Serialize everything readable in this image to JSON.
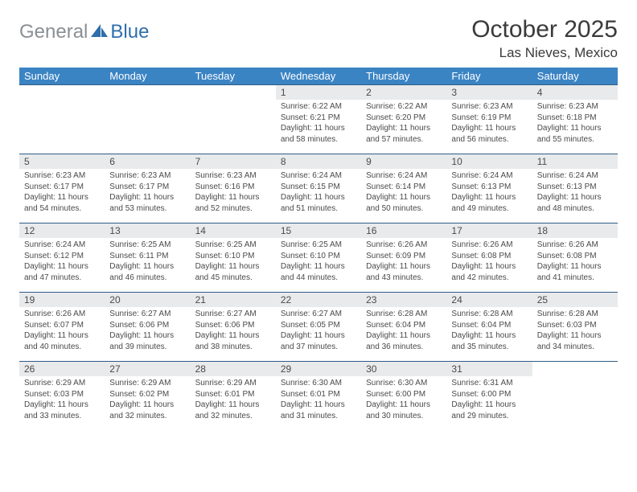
{
  "brand": {
    "gray": "General",
    "blue": "Blue"
  },
  "title": "October 2025",
  "location": "Las Nieves, Mexico",
  "colors": {
    "header_bg": "#3b84c4",
    "header_text": "#ffffff",
    "row_border": "#2f5d87",
    "daynum_bg": "#e9eaeb",
    "text": "#4a4a4a",
    "logo_gray": "#8a8f94",
    "logo_blue": "#2f6fab"
  },
  "typography": {
    "title_fontsize": 30,
    "location_fontsize": 17,
    "dayheader_fontsize": 13,
    "daynum_fontsize": 12,
    "body_fontsize": 10
  },
  "day_names": [
    "Sunday",
    "Monday",
    "Tuesday",
    "Wednesday",
    "Thursday",
    "Friday",
    "Saturday"
  ],
  "weeks": [
    [
      {
        "n": "",
        "sr": "",
        "ss": "",
        "dl": ""
      },
      {
        "n": "",
        "sr": "",
        "ss": "",
        "dl": ""
      },
      {
        "n": "",
        "sr": "",
        "ss": "",
        "dl": ""
      },
      {
        "n": "1",
        "sr": "Sunrise: 6:22 AM",
        "ss": "Sunset: 6:21 PM",
        "dl": "Daylight: 11 hours and 58 minutes."
      },
      {
        "n": "2",
        "sr": "Sunrise: 6:22 AM",
        "ss": "Sunset: 6:20 PM",
        "dl": "Daylight: 11 hours and 57 minutes."
      },
      {
        "n": "3",
        "sr": "Sunrise: 6:23 AM",
        "ss": "Sunset: 6:19 PM",
        "dl": "Daylight: 11 hours and 56 minutes."
      },
      {
        "n": "4",
        "sr": "Sunrise: 6:23 AM",
        "ss": "Sunset: 6:18 PM",
        "dl": "Daylight: 11 hours and 55 minutes."
      }
    ],
    [
      {
        "n": "5",
        "sr": "Sunrise: 6:23 AM",
        "ss": "Sunset: 6:17 PM",
        "dl": "Daylight: 11 hours and 54 minutes."
      },
      {
        "n": "6",
        "sr": "Sunrise: 6:23 AM",
        "ss": "Sunset: 6:17 PM",
        "dl": "Daylight: 11 hours and 53 minutes."
      },
      {
        "n": "7",
        "sr": "Sunrise: 6:23 AM",
        "ss": "Sunset: 6:16 PM",
        "dl": "Daylight: 11 hours and 52 minutes."
      },
      {
        "n": "8",
        "sr": "Sunrise: 6:24 AM",
        "ss": "Sunset: 6:15 PM",
        "dl": "Daylight: 11 hours and 51 minutes."
      },
      {
        "n": "9",
        "sr": "Sunrise: 6:24 AM",
        "ss": "Sunset: 6:14 PM",
        "dl": "Daylight: 11 hours and 50 minutes."
      },
      {
        "n": "10",
        "sr": "Sunrise: 6:24 AM",
        "ss": "Sunset: 6:13 PM",
        "dl": "Daylight: 11 hours and 49 minutes."
      },
      {
        "n": "11",
        "sr": "Sunrise: 6:24 AM",
        "ss": "Sunset: 6:13 PM",
        "dl": "Daylight: 11 hours and 48 minutes."
      }
    ],
    [
      {
        "n": "12",
        "sr": "Sunrise: 6:24 AM",
        "ss": "Sunset: 6:12 PM",
        "dl": "Daylight: 11 hours and 47 minutes."
      },
      {
        "n": "13",
        "sr": "Sunrise: 6:25 AM",
        "ss": "Sunset: 6:11 PM",
        "dl": "Daylight: 11 hours and 46 minutes."
      },
      {
        "n": "14",
        "sr": "Sunrise: 6:25 AM",
        "ss": "Sunset: 6:10 PM",
        "dl": "Daylight: 11 hours and 45 minutes."
      },
      {
        "n": "15",
        "sr": "Sunrise: 6:25 AM",
        "ss": "Sunset: 6:10 PM",
        "dl": "Daylight: 11 hours and 44 minutes."
      },
      {
        "n": "16",
        "sr": "Sunrise: 6:26 AM",
        "ss": "Sunset: 6:09 PM",
        "dl": "Daylight: 11 hours and 43 minutes."
      },
      {
        "n": "17",
        "sr": "Sunrise: 6:26 AM",
        "ss": "Sunset: 6:08 PM",
        "dl": "Daylight: 11 hours and 42 minutes."
      },
      {
        "n": "18",
        "sr": "Sunrise: 6:26 AM",
        "ss": "Sunset: 6:08 PM",
        "dl": "Daylight: 11 hours and 41 minutes."
      }
    ],
    [
      {
        "n": "19",
        "sr": "Sunrise: 6:26 AM",
        "ss": "Sunset: 6:07 PM",
        "dl": "Daylight: 11 hours and 40 minutes."
      },
      {
        "n": "20",
        "sr": "Sunrise: 6:27 AM",
        "ss": "Sunset: 6:06 PM",
        "dl": "Daylight: 11 hours and 39 minutes."
      },
      {
        "n": "21",
        "sr": "Sunrise: 6:27 AM",
        "ss": "Sunset: 6:06 PM",
        "dl": "Daylight: 11 hours and 38 minutes."
      },
      {
        "n": "22",
        "sr": "Sunrise: 6:27 AM",
        "ss": "Sunset: 6:05 PM",
        "dl": "Daylight: 11 hours and 37 minutes."
      },
      {
        "n": "23",
        "sr": "Sunrise: 6:28 AM",
        "ss": "Sunset: 6:04 PM",
        "dl": "Daylight: 11 hours and 36 minutes."
      },
      {
        "n": "24",
        "sr": "Sunrise: 6:28 AM",
        "ss": "Sunset: 6:04 PM",
        "dl": "Daylight: 11 hours and 35 minutes."
      },
      {
        "n": "25",
        "sr": "Sunrise: 6:28 AM",
        "ss": "Sunset: 6:03 PM",
        "dl": "Daylight: 11 hours and 34 minutes."
      }
    ],
    [
      {
        "n": "26",
        "sr": "Sunrise: 6:29 AM",
        "ss": "Sunset: 6:03 PM",
        "dl": "Daylight: 11 hours and 33 minutes."
      },
      {
        "n": "27",
        "sr": "Sunrise: 6:29 AM",
        "ss": "Sunset: 6:02 PM",
        "dl": "Daylight: 11 hours and 32 minutes."
      },
      {
        "n": "28",
        "sr": "Sunrise: 6:29 AM",
        "ss": "Sunset: 6:01 PM",
        "dl": "Daylight: 11 hours and 32 minutes."
      },
      {
        "n": "29",
        "sr": "Sunrise: 6:30 AM",
        "ss": "Sunset: 6:01 PM",
        "dl": "Daylight: 11 hours and 31 minutes."
      },
      {
        "n": "30",
        "sr": "Sunrise: 6:30 AM",
        "ss": "Sunset: 6:00 PM",
        "dl": "Daylight: 11 hours and 30 minutes."
      },
      {
        "n": "31",
        "sr": "Sunrise: 6:31 AM",
        "ss": "Sunset: 6:00 PM",
        "dl": "Daylight: 11 hours and 29 minutes."
      },
      {
        "n": "",
        "sr": "",
        "ss": "",
        "dl": ""
      }
    ]
  ]
}
